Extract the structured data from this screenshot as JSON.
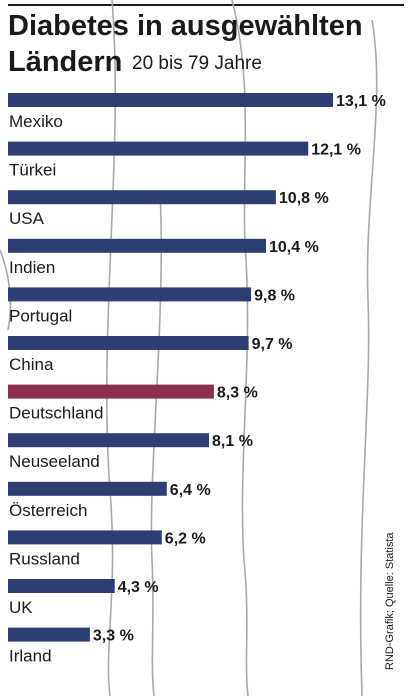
{
  "colors": {
    "bar": "#2e3e73",
    "highlight": "#8c2f4f",
    "deco": "#a8a8a8"
  },
  "chart_data": {
    "type": "bar",
    "orientation": "horizontal",
    "title": "Diabetes in ausgewählten Ländern",
    "title_line1": "Diabetes in ausgewählten",
    "title_line2": "Ländern",
    "subtitle": "20 bis 79 Jahre",
    "categories": [
      "Mexiko",
      "Türkei",
      "USA",
      "Indien",
      "Portugal",
      "China",
      "Deutschland",
      "Neuseeland",
      "Österreich",
      "Russland",
      "UK",
      "Irland"
    ],
    "values": [
      13.1,
      12.1,
      10.8,
      10.4,
      9.8,
      9.7,
      8.3,
      8.1,
      6.4,
      6.2,
      4.3,
      3.3
    ],
    "value_labels": [
      "13,1 %",
      "12,1 %",
      "10,8 %",
      "10,4 %",
      "9,8 %",
      "9,7 %",
      "8,3 %",
      "8,1 %",
      "6,4 %",
      "6,2 %",
      "4,3 %",
      "3,3 %"
    ],
    "highlight": "Deutschland",
    "unit": "%",
    "xlim": [
      0,
      13.1
    ],
    "grid": false,
    "legend": false
  },
  "source": "RND-Grafik; Quelle: Statista"
}
